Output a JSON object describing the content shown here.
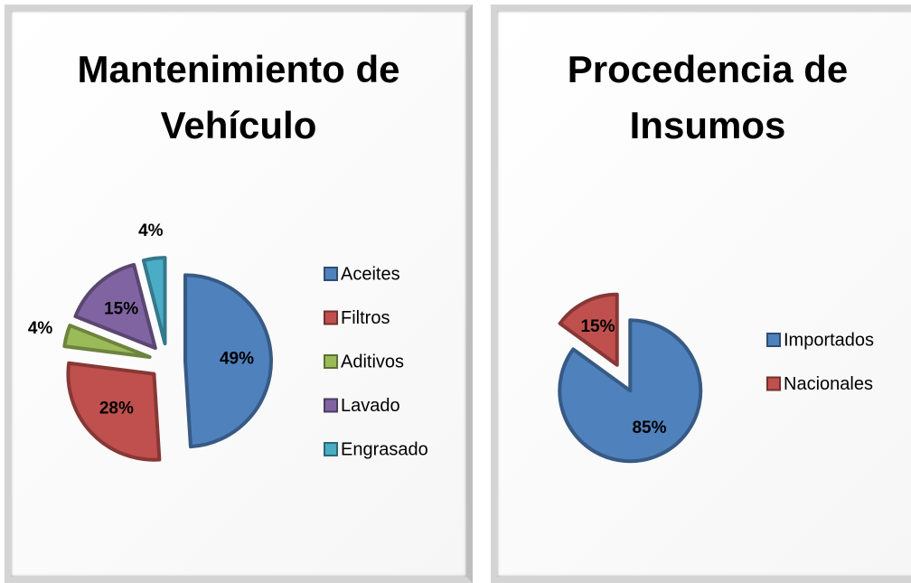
{
  "chart_data": [
    {
      "type": "pie",
      "title": "Mantenimiento de Vehículo",
      "categories": [
        "Aceites",
        "Filtros",
        "Aditivos",
        "Lavado",
        "Engrasado"
      ],
      "values": [
        49,
        28,
        4,
        15,
        4
      ],
      "value_labels": [
        "49%",
        "28%",
        "4%",
        "15%",
        "4%"
      ],
      "colors": [
        "#4f81bd",
        "#c0504d",
        "#9bbb59",
        "#8064a2",
        "#4bacc6"
      ],
      "legend": "right"
    },
    {
      "type": "pie",
      "title": "Procedencia de Insumos",
      "categories": [
        "Importados",
        "Nacionales"
      ],
      "values": [
        85,
        15
      ],
      "value_labels": [
        "85%",
        "15%"
      ],
      "colors": [
        "#4f81bd",
        "#c0504d"
      ],
      "legend": "right"
    }
  ]
}
